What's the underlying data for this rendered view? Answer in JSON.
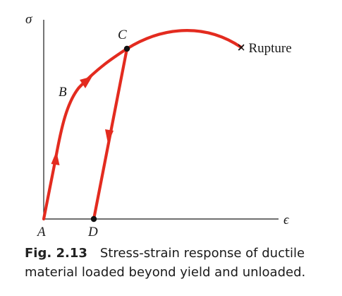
{
  "diagram": {
    "axis_y_label": "σ",
    "axis_x_label": "ϵ",
    "points": {
      "A": "A",
      "B": "B",
      "C": "C",
      "D": "D"
    },
    "rupture_label": "× Rupture",
    "colors": {
      "curve": "#e32b1f",
      "axis": "#1a1a1a"
    }
  },
  "caption": {
    "number": "Fig. 2.13",
    "text_line1": "Stress-strain response of ductile",
    "text_line2": "material loaded beyond yield and unloaded."
  }
}
